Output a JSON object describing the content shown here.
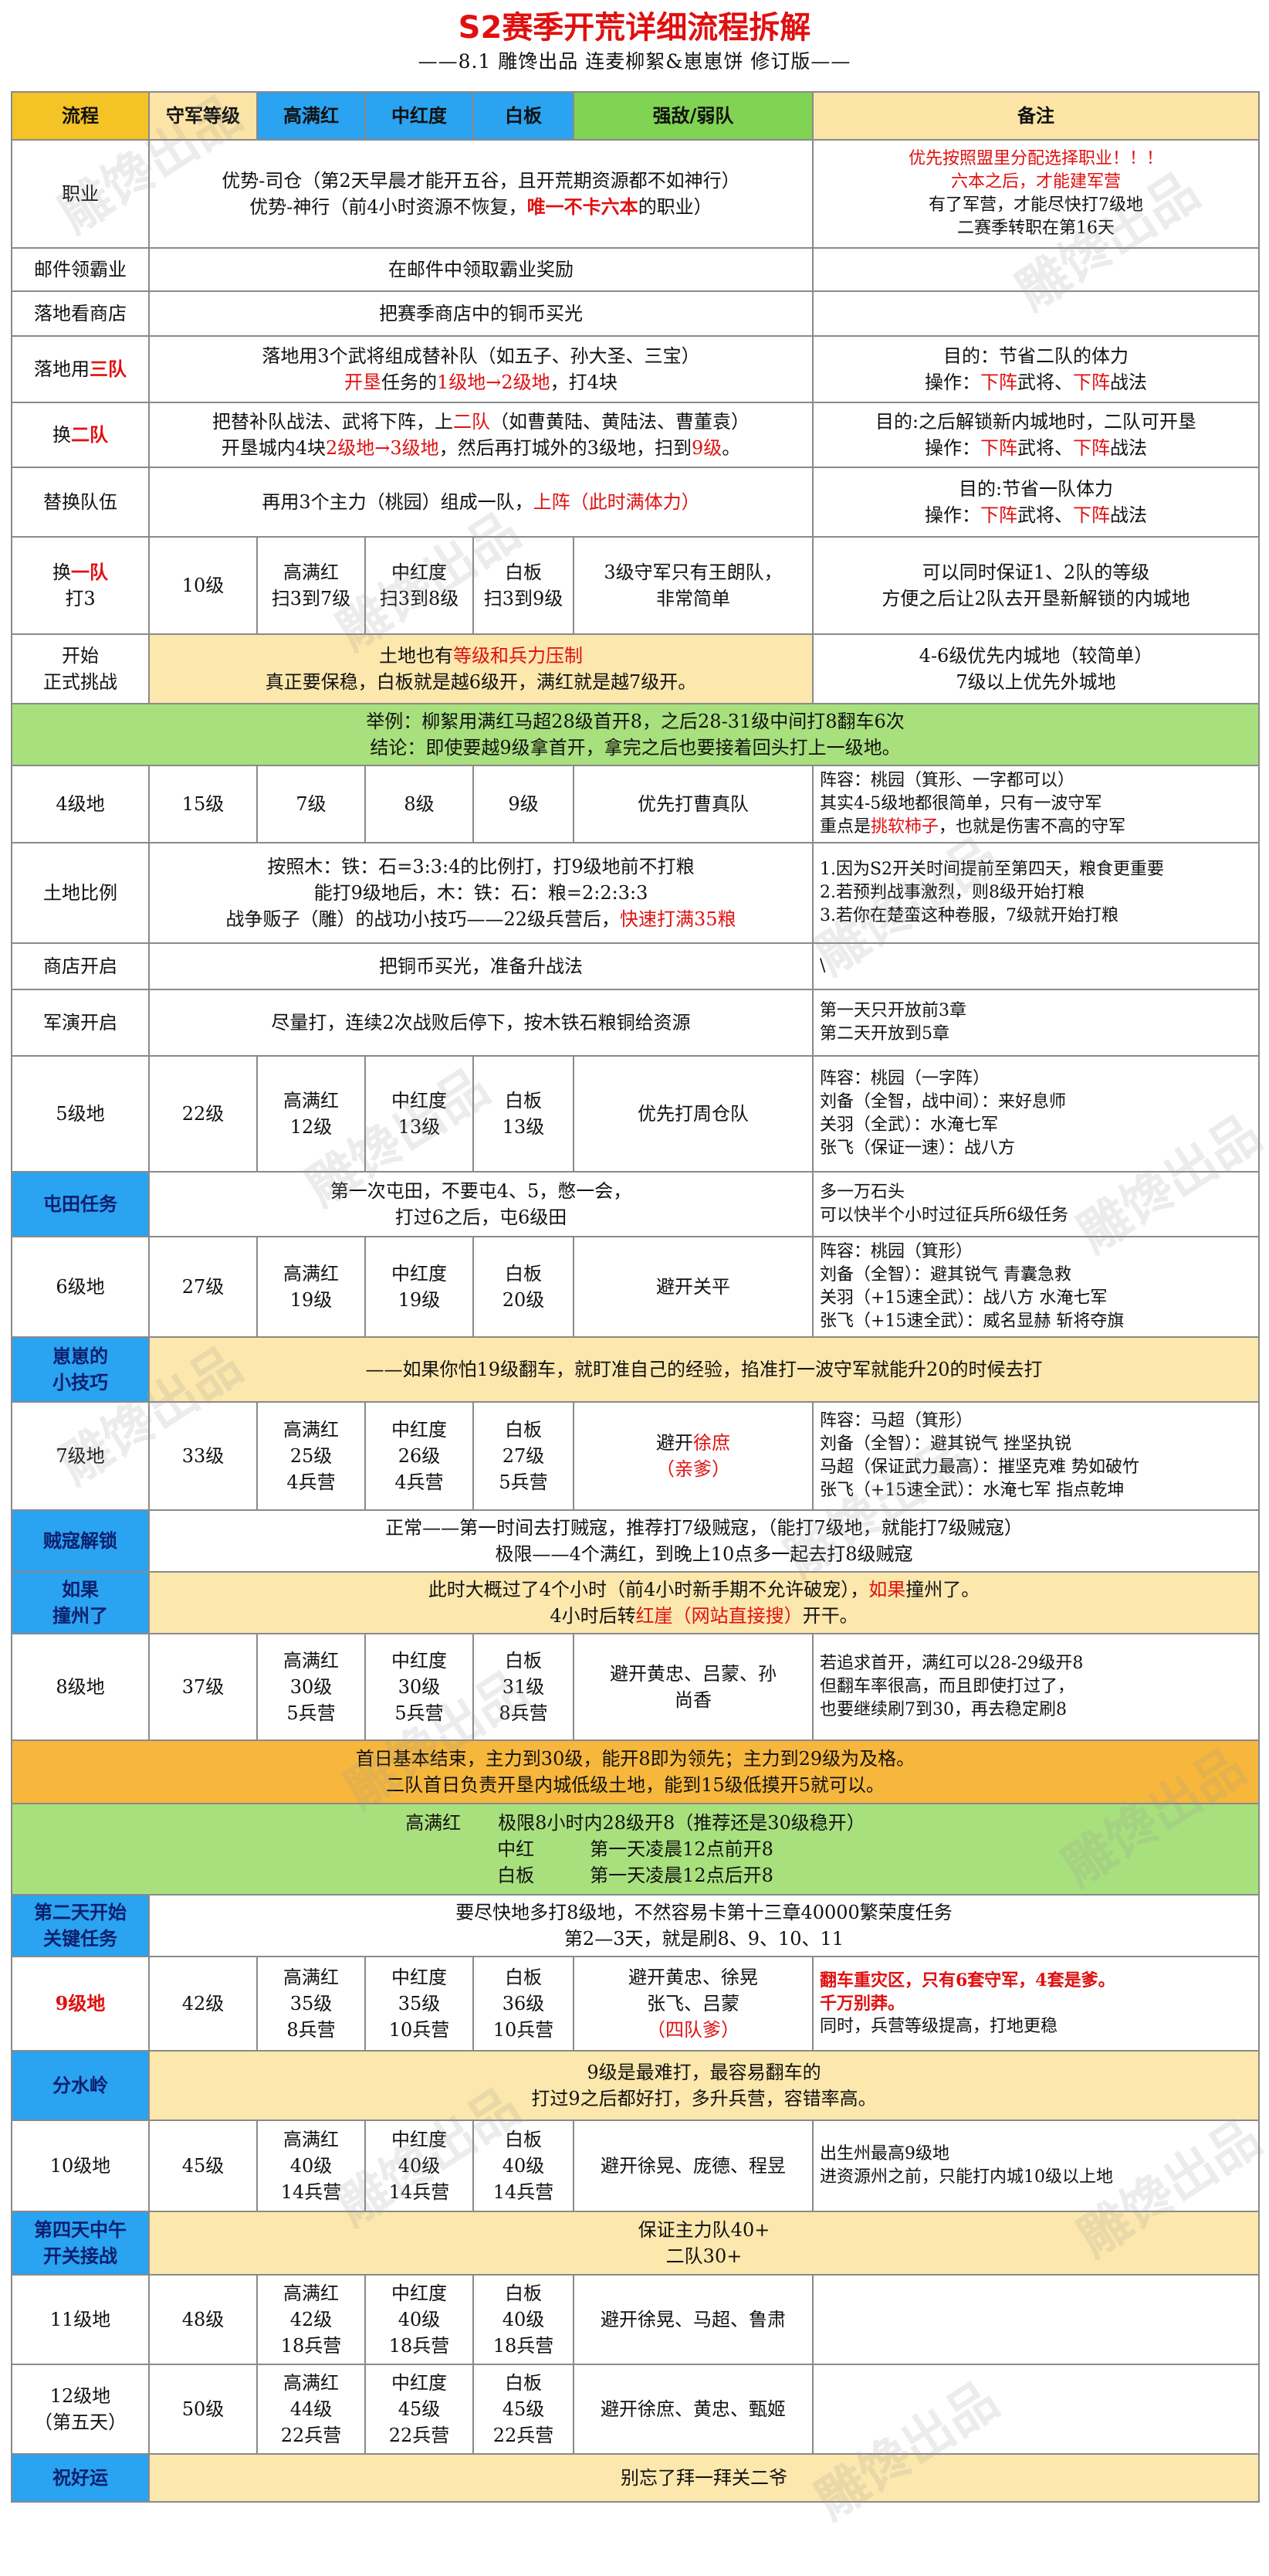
{
  "title": "S2赛季开荒详细流程拆解",
  "subtitle": "——8.1 雕馋出品 连麦柳絮&崽崽饼 修订版——",
  "watermark": "雕馋出品",
  "headers": [
    "流程",
    "守军等级",
    "高满红",
    "中红度",
    "白板",
    "强敌/弱队",
    "备注"
  ],
  "rows": {
    "career": {
      "label": "职业",
      "line1": "优势-司仓（第2天早晨才能开五谷，且开荒期资源都不如神行）",
      "line2a": "优势-神行（前4小时资源不恢复，",
      "line2b": "唯一不卡六本",
      "line2c": "的职业）",
      "note1": "优先按照盟里分配选择职业！！！",
      "note2": "六本之后，才能建军营",
      "note3": "有了军营，才能尽快打7级地",
      "note4": "二赛季转职在第16天"
    },
    "mail": {
      "label": "邮件领霸业",
      "content": "在邮件中领取霸业奖励"
    },
    "shop": {
      "label": "落地看商店",
      "content": "把赛季商店中的铜币买光"
    },
    "team3": {
      "label_a": "落地用",
      "label_b": "三队",
      "c1": "落地用3个武将组成替补队（如五子、孙大圣、三宝）",
      "c2a": "开垦",
      "c2b": "任务的",
      "c2c": "1级地→2级地",
      "c2d": "，打4块",
      "n1": "目的：节省二队的体力",
      "n2a": "操作：",
      "n2b": "下阵",
      "n2c": "武将、",
      "n2d": "下阵",
      "n2e": "战法"
    },
    "team2": {
      "label_a": "换",
      "label_b": "二队",
      "c1a": "把替补队战法、武将下阵，上",
      "c1b": "二队",
      "c1c": "（如曹黄陆、黄陆法、曹董袁）",
      "c2a": "开垦城内4块",
      "c2b": "2级地→3级地",
      "c2c": "，然后再打城外的3级地，扫到",
      "c2d": "9级",
      "c2e": "。",
      "n1": "目的:之后解锁新内城地时，二队可开垦",
      "n2a": "操作：",
      "n2b": "下阵",
      "n2c": "武将、",
      "n2d": "下阵",
      "n2e": "战法"
    },
    "swap": {
      "label": "替换队伍",
      "ca": "再用3个主力（桃园）组成一队，",
      "cb": "上阵（此时满体力）",
      "n1": "目的:节省一队体力",
      "n2a": "操作：",
      "n2b": "下阵",
      "n2c": "武将、",
      "n2d": "下阵",
      "n2e": "战法"
    },
    "team1": {
      "label_a": "换",
      "label_b": "一队",
      "label_c": "打3",
      "level": "10级",
      "gmh": "高满红\n扫3到7级",
      "zhd": "中红度\n扫3到8级",
      "bb": "白板\n扫3到9级",
      "enemy": "3级守军只有王朗队，\n非常简单",
      "note": "可以同时保证1、2队的等级\n方便之后让2队去开垦新解锁的内城地"
    },
    "start": {
      "label": "开始\n正式挑战",
      "c1a": "土地也有",
      "c1b": "等级和兵力压制",
      "c2": "真正要保稳，白板就是越6级开，满红就是越7级开。",
      "note": "4-6级优先内城地（较简单）\n7级以上优先外城地"
    },
    "example": {
      "l1": "举例：柳絮用满红马超28级首开8，之后28-31级中间打8翻车6次",
      "l2": "结论：即使要越9级拿首开，拿完之后也要接着回头打上一级地。"
    },
    "lv4": {
      "label": "4级地",
      "level": "15级",
      "gmh": "7级",
      "zhd": "8级",
      "bb": "9级",
      "enemy": "优先打曹真队",
      "n1": "阵容：桃园（箕形、一字都可以）",
      "n2": "其实4-5级地都很简单，只有一波守军",
      "n3a": "重点是",
      "n3b": "挑软柿子",
      "n3c": "，也就是伤害不高的守军"
    },
    "ratio": {
      "label": "土地比例",
      "c1": "按照木：铁：石=3:3:4的比例打，打9级地前不打粮",
      "c2": "能打9级地后，木：铁：石：粮=2:2:3:3",
      "c3a": "战争贩子（雕）的战功小技巧——22级兵营后，",
      "c3b": "快速打满35粮",
      "n1": "1.因为S2开关时间提前至第四天，粮食更重要",
      "n2": "2.若预判战事激烈，则8级开始打粮",
      "n3": "3.若你在楚蛮这种卷服，7级就开始打粮"
    },
    "shop2": {
      "label": "商店开启",
      "content": "把铜币买光，准备升战法",
      "note": "\\"
    },
    "drill": {
      "label": "军演开启",
      "content": "尽量打，连续2次战败后停下，按木铁石粮铜给资源",
      "note": "第一天只开放前3章\n第二天开放到5章"
    },
    "lv5": {
      "label": "5级地",
      "level": "22级",
      "gmh": "高满红\n12级",
      "zhd": "中红度\n13级",
      "bb": "白板\n13级",
      "enemy": "优先打周仓队",
      "note": "阵容：桃园（一字阵）\n刘备（全智，战中间）：来好息师\n关羽（全武）：水淹七军\n张飞（保证一速）：战八方"
    },
    "farm": {
      "label": "屯田任务",
      "c1": "第一次屯田，不要屯4、5，憋一会，",
      "c2": "打过6之后，屯6级田",
      "note": "多一万石头\n可以快半个小时过征兵所6级任务"
    },
    "lv6": {
      "label": "6级地",
      "level": "27级",
      "gmh": "高满红\n19级",
      "zhd": "中红度\n19级",
      "bb": "白板\n20级",
      "enemy": "避开关平",
      "note": "阵容：桃园（箕形）\n刘备（全智）：避其锐气 青囊急救\n关羽（+15速全武）：战八方 水淹七军\n张飞（+15速全武）：威名显赫 斩将夺旗"
    },
    "tip": {
      "label": "崽崽的\n小技巧",
      "content": "——如果你怕19级翻车，就盯准自己的经验，掐准打一波守军就能升20的时候去打"
    },
    "lv7": {
      "label": "7级地",
      "level": "33级",
      "gmh": "高满红\n25级\n4兵营",
      "zhd": "中红度\n26级\n4兵营",
      "bb": "白板\n27级\n5兵营",
      "enemy_a": "避开",
      "enemy_b": "徐庶",
      "enemy_c": "（亲爹）",
      "note": "阵容：马超（箕形）\n刘备（全智）：避其锐气 挫坚执锐\n马超（保证武力最高）：摧坚克难 势如破竹\n张飞（+15速全武）：水淹七军 指点乾坤"
    },
    "bandit": {
      "label": "贼寇解锁",
      "c1": "正常——第一时间去打贼寇，推荐打7级贼寇，（能打7级地，就能打7级贼寇）",
      "c2": "极限——4个满红，到晚上10点多一起去打8级贼寇"
    },
    "youzhou": {
      "label": "如果\n撞州了",
      "c1a": "此时大概过了4个小时（前4小时新手期不允许破宠），",
      "c1b": "如果",
      "c1c": "撞州了。",
      "c2a": "4小时后转",
      "c2b": "红崖（网站直接搜）",
      "c2c": "开干。"
    },
    "lv8": {
      "label": "8级地",
      "level": "37级",
      "gmh": "高满红\n30级\n5兵营",
      "zhd": "中红度\n30级\n5兵营",
      "bb": "白板\n31级\n8兵营",
      "enemy": "避开黄忠、吕蒙、孙\n尚香",
      "note": "若追求首开，满红可以28-29级开8\n但翻车率很高，而且即使打过了，\n也要继续刷7到30，再去稳定刷8"
    },
    "day1": {
      "l1": "首日基本结束，主力到30级，能开8即为领先；主力到29级为及格。",
      "l2": "二队首日负责开垦内城低级土地，能到15级低摸开5就可以。"
    },
    "extreme": {
      "l1": "高满红　　极限8小时内28级开8（推荐还是30级稳开）",
      "l2": "中红　　　第一天凌晨12点前开8",
      "l3": "白板　　　第一天凌晨12点后开8"
    },
    "day2": {
      "label": "第二天开始\n关键任务",
      "c1": "要尽快地多打8级地，不然容易卡第十三章40000繁荣度任务",
      "c2": "第2—3天，就是刷8、9、10、11"
    },
    "lv9": {
      "label": "9级地",
      "level": "42级",
      "gmh": "高满红\n35级\n8兵营",
      "zhd": "中红度\n35级\n10兵营",
      "bb": "白板\n36级\n10兵营",
      "enemy": "避开黄忠、徐晃\n张飞、吕蒙",
      "enemy_red": "（四队爹）",
      "note_red": "翻车重灾区，只有6套守军，4套是爹。\n千万别莽。",
      "note_black": "同时，兵营等级提高，打地更稳"
    },
    "watershed": {
      "label": "分水岭",
      "c1": "9级是最难打，最容易翻车的",
      "c2": "打过9之后都好打，多升兵营，容错率高。"
    },
    "lv10": {
      "label": "10级地",
      "level": "45级",
      "gmh": "高满红\n40级\n14兵营",
      "zhd": "中红度\n40级\n14兵营",
      "bb": "白板\n40级\n14兵营",
      "enemy": "避开徐晃、庞德、程昱",
      "note": "出生州最高9级地\n进资源州之前，只能打内城10级以上地"
    },
    "day4": {
      "label": "第四天中午\n开关接战",
      "c1": "保证主力队40+",
      "c2": "二队30+"
    },
    "lv11": {
      "label": "11级地",
      "level": "48级",
      "gmh": "高满红\n42级\n18兵营",
      "zhd": "中红度\n40级\n18兵营",
      "bb": "白板\n40级\n18兵营",
      "enemy": "避开徐晃、马超、鲁肃"
    },
    "lv12": {
      "label": "12级地\n（第五天）",
      "level": "50级",
      "gmh": "高满红\n44级\n22兵营",
      "zhd": "中红度\n45级\n22兵营",
      "bb": "白板\n45级\n22兵营",
      "enemy": "避开徐庶、黄忠、甄姬"
    },
    "luck": {
      "label": "祝好运",
      "content": "别忘了拜一拜关二爷"
    }
  }
}
